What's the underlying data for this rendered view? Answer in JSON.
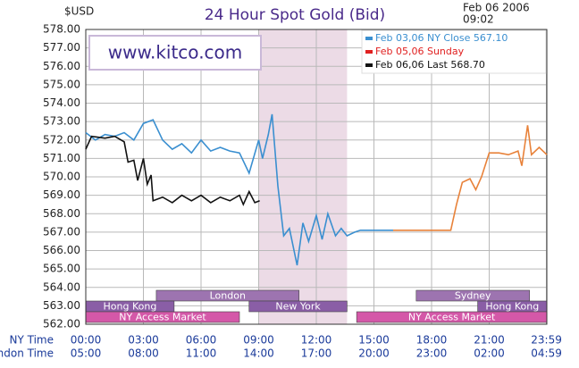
{
  "chart_data": {
    "type": "line",
    "title": "24 Hour Spot Gold (Bid)",
    "y_unit": "$USD",
    "date": "Feb 06 2006",
    "time": "09:02",
    "watermark": "www.kitco.com",
    "ylim": [
      562,
      578
    ],
    "yticks": [
      {
        "value": 562,
        "label": "562.00"
      },
      {
        "value": 563,
        "label": "563.00"
      },
      {
        "value": 564,
        "label": "564.00"
      },
      {
        "value": 565,
        "label": "565.00"
      },
      {
        "value": 566,
        "label": "566.00"
      },
      {
        "value": 567,
        "label": "567.00"
      },
      {
        "value": 568,
        "label": "568.00"
      },
      {
        "value": 569,
        "label": "569.00"
      },
      {
        "value": 570,
        "label": "570.00"
      },
      {
        "value": 571,
        "label": "571.00"
      },
      {
        "value": 572,
        "label": "572.00"
      },
      {
        "value": 573,
        "label": "573.00"
      },
      {
        "value": 574,
        "label": "574.00"
      },
      {
        "value": 575,
        "label": "575.00"
      },
      {
        "value": 576,
        "label": "576.00"
      },
      {
        "value": 577,
        "label": "577.00"
      },
      {
        "value": 578,
        "label": "578.00"
      }
    ],
    "xlim": [
      0,
      24
    ],
    "x_row_label": "NY Time",
    "x2_row_label": "London Time",
    "xticks": [
      {
        "value": 0,
        "label": "00:00"
      },
      {
        "value": 3,
        "label": "03:00"
      },
      {
        "value": 6,
        "label": "06:00"
      },
      {
        "value": 9,
        "label": "09:00"
      },
      {
        "value": 12,
        "label": "12:00"
      },
      {
        "value": 15,
        "label": "15:00"
      },
      {
        "value": 18,
        "label": "18:00"
      },
      {
        "value": 21,
        "label": "21:00"
      },
      {
        "value": 23.98,
        "label": "23:59"
      }
    ],
    "x2tick_labels": [
      "05:00",
      "08:00",
      "11:00",
      "14:00",
      "17:00",
      "20:00",
      "23:00",
      "02:00",
      "04:59"
    ],
    "grid": true,
    "highlight": {
      "start": 9.0,
      "end": 13.6,
      "color": "#ecdbe6"
    },
    "sessions": [
      {
        "name": "London",
        "start": 3.67,
        "end": 11.1,
        "row": 0,
        "color": "#9d74b0"
      },
      {
        "name": "Sydney",
        "start": 17.2,
        "end": 23.1,
        "row": 0,
        "color": "#9d74b0"
      },
      {
        "name": "Hong Kong",
        "start": 0,
        "end": 4.6,
        "row": 1,
        "color": "#8a5ea6"
      },
      {
        "name": "New York",
        "start": 8.5,
        "end": 13.6,
        "row": 1,
        "color": "#8a5ea6"
      },
      {
        "name": "Hong Kong",
        "start": 20.4,
        "end": 24,
        "row": 1,
        "color": "#8a5ea6"
      },
      {
        "name": "NY Access Market",
        "start": 0,
        "end": 8.0,
        "row": 2,
        "color": "#d458a8"
      },
      {
        "name": "NY Access Market",
        "start": 14.1,
        "end": 24,
        "row": 2,
        "color": "#d458a8"
      }
    ],
    "series": [
      {
        "name": "Feb 03,06  NY Close 567.10",
        "color": "#3a8fd0",
        "label_color": "#3a8fd0",
        "x": [
          0,
          0.5,
          1,
          1.5,
          2,
          2.5,
          3,
          3.5,
          4,
          4.5,
          5,
          5.5,
          6,
          6.5,
          7,
          7.5,
          8,
          8.5,
          9,
          9.2,
          9.5,
          9.7,
          10,
          10.3,
          10.6,
          11,
          11.3,
          11.6,
          12,
          12.3,
          12.6,
          13,
          13.3,
          13.6,
          14,
          14.3,
          16
        ],
        "values": [
          572.4,
          572.0,
          572.3,
          572.2,
          572.4,
          572.0,
          572.9,
          573.1,
          572.0,
          571.5,
          571.8,
          571.3,
          572.0,
          571.4,
          571.6,
          571.4,
          571.3,
          570.2,
          572.0,
          571.0,
          572.3,
          573.4,
          569.5,
          566.8,
          567.2,
          565.2,
          567.5,
          566.5,
          567.9,
          566.6,
          568.0,
          566.8,
          567.2,
          566.8,
          567.0,
          567.1,
          567.1
        ]
      },
      {
        "name": "Feb 05,06       Sunday",
        "color": "#e8823a",
        "label_color": "#e02020",
        "x": [
          16,
          19,
          19.3,
          19.6,
          20,
          20.3,
          20.6,
          21,
          21.5,
          22,
          22.5,
          22.7,
          23,
          23.2,
          23.6,
          24
        ],
        "values": [
          567.1,
          567.1,
          568.5,
          569.7,
          569.9,
          569.3,
          570.0,
          571.3,
          571.3,
          571.2,
          571.4,
          570.6,
          572.8,
          571.2,
          571.6,
          571.2
        ]
      },
      {
        "name": "Feb 06,06  Last 568.70",
        "color": "#111111",
        "label_color": "#111111",
        "x": [
          0,
          0.3,
          1,
          1.5,
          2,
          2.2,
          2.5,
          2.7,
          3,
          3.2,
          3.4,
          3.5,
          4,
          4.5,
          5,
          5.5,
          6,
          6.5,
          7,
          7.5,
          8,
          8.2,
          8.5,
          8.8,
          9.05
        ],
        "values": [
          571.5,
          572.2,
          572.1,
          572.2,
          571.9,
          570.8,
          570.9,
          569.8,
          571.0,
          569.6,
          570.1,
          568.7,
          568.9,
          568.6,
          569.0,
          568.7,
          569.0,
          568.6,
          568.9,
          568.7,
          569.0,
          568.5,
          569.2,
          568.6,
          568.7
        ]
      }
    ]
  }
}
